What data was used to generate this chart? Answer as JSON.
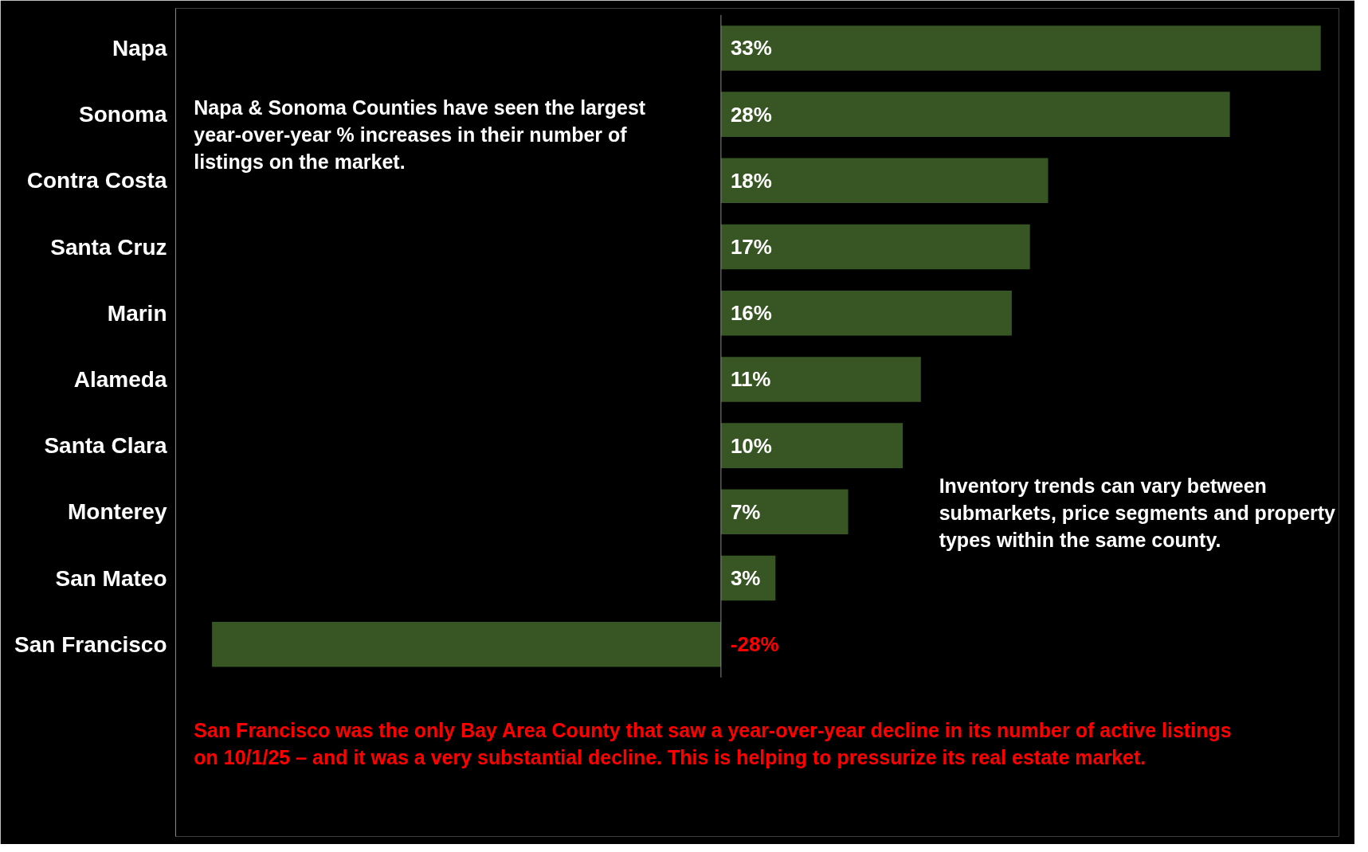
{
  "chart_data": {
    "type": "bar",
    "orientation": "horizontal",
    "categories": [
      "Napa",
      "Sonoma",
      "Contra Costa",
      "Santa Cruz",
      "Marin",
      "Alameda",
      "Santa Clara",
      "Monterey",
      "San Mateo",
      "San Francisco"
    ],
    "values": [
      33,
      28,
      18,
      17,
      16,
      11,
      10,
      7,
      3,
      -28
    ],
    "color": "#375623",
    "value_labels": [
      "33%",
      "28%",
      "18%",
      "17%",
      "16%",
      "11%",
      "10%",
      "7%",
      "3%",
      "-28%"
    ],
    "xlim": [
      -30,
      34
    ],
    "tick_labels": "y",
    "grid": false,
    "annotations": [
      "Napa & Sonoma Counties have seen the largest year-over-year % increases in their number of listings on the market.",
      "Inventory trends can vary between submarkets, price segments and property types within the same county.",
      "San Francisco was the only Bay Area County that saw a year-over-year decline in its number of active listings on 10/1/25 – and it was a very substantial decline. This is helping to pressurize its real estate market."
    ]
  }
}
